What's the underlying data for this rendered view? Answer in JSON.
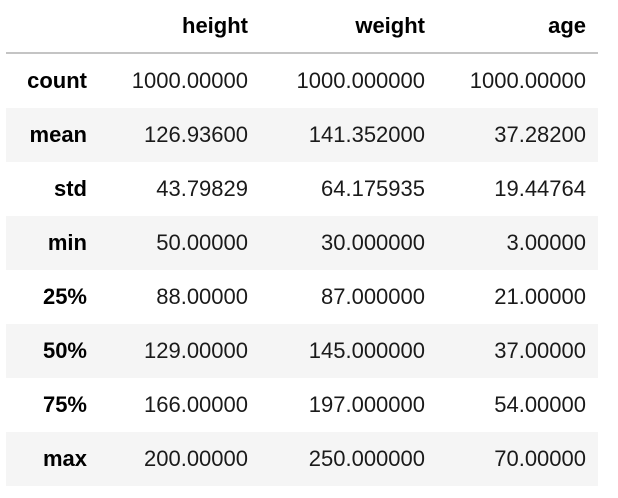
{
  "table": {
    "index_header": "",
    "columns": [
      "height",
      "weight",
      "age"
    ],
    "rows": [
      {
        "label": "count",
        "values": [
          "1000.00000",
          "1000.000000",
          "1000.00000"
        ]
      },
      {
        "label": "mean",
        "values": [
          "126.93600",
          "141.352000",
          "37.28200"
        ]
      },
      {
        "label": "std",
        "values": [
          "43.79829",
          "64.175935",
          "19.44764"
        ]
      },
      {
        "label": "min",
        "values": [
          "50.00000",
          "30.000000",
          "3.00000"
        ]
      },
      {
        "label": "25%",
        "values": [
          "88.00000",
          "87.000000",
          "21.00000"
        ]
      },
      {
        "label": "50%",
        "values": [
          "129.00000",
          "145.000000",
          "37.00000"
        ]
      },
      {
        "label": "75%",
        "values": [
          "166.00000",
          "197.000000",
          "54.00000"
        ]
      },
      {
        "label": "max",
        "values": [
          "200.00000",
          "250.000000",
          "70.00000"
        ]
      }
    ]
  },
  "colors": {
    "header_rule": "#c4c4c4",
    "stripe": "#f5f5f5",
    "background": "#ffffff"
  }
}
